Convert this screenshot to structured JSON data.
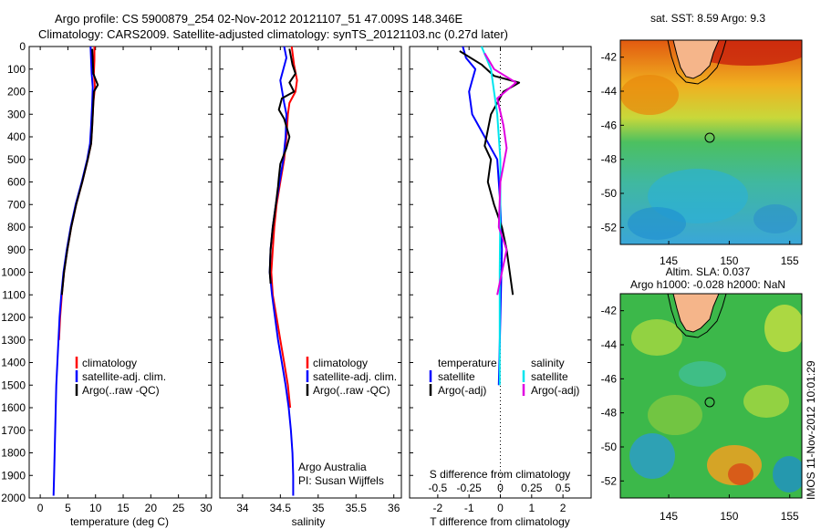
{
  "title_line1": "Argo profile: CS 5900879_254 02-Nov-2012 20121107_51 47.009S 148.346E",
  "title_line2": "Climatology: CARS2009. Satellite-adjusted climatology: synTS_20121103.nc (0.27d later)",
  "credit_line1": "Argo Australia",
  "credit_line2": "PI: Susan Wijffels",
  "timestamp": "IMOS 11-Nov-2012 10:01:29",
  "colors": {
    "climatology": "#ff0000",
    "satellite": "#0000ff",
    "argo": "#000000",
    "sat_salinity": "#00e5ee",
    "argo_salinity": "#e000e0",
    "land": "#f5b58a"
  },
  "chart_data": [
    {
      "type": "line",
      "xlabel": "temperature (deg C)",
      "ylim": [
        0,
        2000
      ],
      "xlim": [
        -2,
        31
      ],
      "y_reversed": true,
      "x_ticks": [
        0,
        5,
        10,
        15,
        20,
        25,
        30
      ],
      "y_ticks": [
        0,
        100,
        200,
        300,
        400,
        500,
        600,
        700,
        800,
        900,
        1000,
        1100,
        1200,
        1300,
        1400,
        1500,
        1600,
        1700,
        1800,
        1900,
        2000
      ],
      "legend": [
        "climatology",
        "satellite-adj. clim.",
        "Argo(..raw -QC)"
      ],
      "series": [
        {
          "name": "climatology",
          "color": "#ff0000",
          "points": [
            [
              9.8,
              0
            ],
            [
              9.8,
              60
            ],
            [
              9.7,
              120
            ],
            [
              9.9,
              180
            ],
            [
              9.6,
              250
            ],
            [
              9.4,
              350
            ],
            [
              9.2,
              430
            ],
            [
              8.6,
              500
            ],
            [
              7.6,
              600
            ],
            [
              6.5,
              700
            ],
            [
              5.6,
              800
            ],
            [
              4.9,
              900
            ],
            [
              4.3,
              1000
            ],
            [
              3.9,
              1100
            ],
            [
              3.6,
              1200
            ],
            [
              3.4,
              1300
            ]
          ]
        },
        {
          "name": "satellite-adj. clim.",
          "color": "#0000ff",
          "points": [
            [
              9.1,
              0
            ],
            [
              9.2,
              60
            ],
            [
              9.3,
              120
            ],
            [
              9.5,
              180
            ],
            [
              9.4,
              250
            ],
            [
              9.2,
              350
            ],
            [
              9.0,
              430
            ],
            [
              8.5,
              500
            ],
            [
              7.5,
              600
            ],
            [
              6.4,
              700
            ],
            [
              5.5,
              800
            ],
            [
              4.8,
              900
            ],
            [
              4.2,
              1000
            ],
            [
              3.8,
              1100
            ],
            [
              3.5,
              1200
            ],
            [
              3.3,
              1300
            ],
            [
              3.1,
              1400
            ],
            [
              2.9,
              1500
            ],
            [
              2.8,
              1600
            ],
            [
              2.7,
              1700
            ],
            [
              2.6,
              1800
            ],
            [
              2.5,
              1900
            ],
            [
              2.4,
              1990
            ]
          ]
        },
        {
          "name": "Argo(..raw -QC)",
          "color": "#000000",
          "points": [
            [
              9.4,
              10
            ],
            [
              9.5,
              60
            ],
            [
              9.6,
              120
            ],
            [
              10.4,
              170
            ],
            [
              9.7,
              200
            ],
            [
              9.6,
              250
            ],
            [
              9.5,
              300
            ],
            [
              9.4,
              350
            ],
            [
              9.2,
              430
            ],
            [
              8.6,
              500
            ],
            [
              7.6,
              600
            ],
            [
              6.5,
              700
            ],
            [
              5.6,
              800
            ],
            [
              4.9,
              900
            ],
            [
              4.3,
              1000
            ],
            [
              3.9,
              1100
            ]
          ]
        }
      ]
    },
    {
      "type": "line",
      "xlabel": "salinity",
      "ylim": [
        0,
        2000
      ],
      "xlim": [
        33.7,
        36.1
      ],
      "y_reversed": true,
      "x_ticks": [
        34,
        34.5,
        35,
        35.5,
        36
      ],
      "legend": [
        "climatology",
        "satellite-adj. clim.",
        "Argo(..raw -QC)"
      ],
      "series": [
        {
          "name": "climatology",
          "color": "#ff0000",
          "points": [
            [
              34.65,
              0
            ],
            [
              34.68,
              80
            ],
            [
              34.72,
              150
            ],
            [
              34.7,
              200
            ],
            [
              34.62,
              250
            ],
            [
              34.6,
              300
            ],
            [
              34.58,
              400
            ],
            [
              34.55,
              500
            ],
            [
              34.5,
              600
            ],
            [
              34.45,
              700
            ],
            [
              34.42,
              800
            ],
            [
              34.4,
              900
            ],
            [
              34.38,
              1000
            ],
            [
              34.4,
              1100
            ],
            [
              34.45,
              1200
            ],
            [
              34.5,
              1300
            ],
            [
              34.55,
              1400
            ],
            [
              34.6,
              1500
            ],
            [
              34.63,
              1600
            ]
          ]
        },
        {
          "name": "satellite-adj. clim.",
          "color": "#0000ff",
          "points": [
            [
              34.55,
              0
            ],
            [
              34.58,
              50
            ],
            [
              34.5,
              150
            ],
            [
              34.55,
              250
            ],
            [
              34.58,
              300
            ],
            [
              34.57,
              400
            ],
            [
              34.54,
              500
            ],
            [
              34.49,
              600
            ],
            [
              34.44,
              700
            ],
            [
              34.4,
              800
            ],
            [
              34.37,
              900
            ],
            [
              34.36,
              1000
            ],
            [
              34.39,
              1100
            ],
            [
              34.43,
              1200
            ],
            [
              34.47,
              1300
            ],
            [
              34.52,
              1400
            ],
            [
              34.57,
              1500
            ],
            [
              34.61,
              1600
            ],
            [
              34.64,
              1700
            ],
            [
              34.66,
              1800
            ],
            [
              34.67,
              1900
            ],
            [
              34.67,
              1990
            ]
          ]
        },
        {
          "name": "Argo(..raw -QC)",
          "color": "#000000",
          "points": [
            [
              34.62,
              10
            ],
            [
              34.66,
              80
            ],
            [
              34.7,
              120
            ],
            [
              34.62,
              160
            ],
            [
              34.68,
              200
            ],
            [
              34.52,
              230
            ],
            [
              34.48,
              280
            ],
            [
              34.55,
              320
            ],
            [
              34.62,
              400
            ],
            [
              34.58,
              450
            ],
            [
              34.5,
              520
            ],
            [
              34.48,
              580
            ],
            [
              34.47,
              620
            ],
            [
              34.44,
              700
            ],
            [
              34.4,
              800
            ],
            [
              34.37,
              900
            ],
            [
              34.36,
              1000
            ],
            [
              34.37,
              1050
            ]
          ]
        }
      ]
    },
    {
      "type": "line",
      "xlabel": "T difference from climatology",
      "top_label": "S difference from climatology",
      "ylim": [
        0,
        2000
      ],
      "xlim": [
        -2.9,
        2.9
      ],
      "y_reversed": true,
      "x_ticks": [
        -2,
        -1,
        0,
        1,
        2
      ],
      "top_ticks": [
        "-0.5",
        "-0.25",
        "0",
        "0.25",
        "0.5"
      ],
      "legend_temperature": {
        "heading": "temperature",
        "items": [
          "satellite",
          "Argo(-adj)"
        ]
      },
      "legend_salinity": {
        "heading": "salinity",
        "items": [
          "satellite",
          "Argo(-adj)"
        ]
      },
      "series": [
        {
          "name": "temperature satellite",
          "color": "#0000ff",
          "points": [
            [
              -1.2,
              0
            ],
            [
              -1.1,
              50
            ],
            [
              -0.8,
              100
            ],
            [
              -0.9,
              150
            ],
            [
              -1.0,
              200
            ],
            [
              -0.9,
              300
            ],
            [
              -0.5,
              400
            ],
            [
              -0.1,
              500
            ],
            [
              0.0,
              700
            ],
            [
              0.05,
              900
            ],
            [
              0.0,
              1200
            ],
            [
              -0.05,
              1500
            ]
          ]
        },
        {
          "name": "temperature Argo(-adj)",
          "color": "#000000",
          "points": [
            [
              -1.3,
              20
            ],
            [
              -0.6,
              80
            ],
            [
              -0.2,
              130
            ],
            [
              0.6,
              160
            ],
            [
              0.1,
              200
            ],
            [
              -0.3,
              300
            ],
            [
              -0.5,
              440
            ],
            [
              -0.3,
              500
            ],
            [
              -0.4,
              600
            ],
            [
              -0.2,
              700
            ],
            [
              0.05,
              800
            ],
            [
              0.2,
              900
            ],
            [
              0.3,
              1000
            ],
            [
              0.4,
              1100
            ]
          ]
        },
        {
          "name": "salinity satellite",
          "color": "#00e5ee",
          "points": [
            [
              -0.6,
              0
            ],
            [
              -0.3,
              100
            ],
            [
              -0.2,
              200
            ],
            [
              -0.1,
              300
            ],
            [
              0.0,
              500
            ],
            [
              0.0,
              700
            ],
            [
              -0.02,
              1000
            ],
            [
              -0.02,
              1500
            ]
          ]
        },
        {
          "name": "salinity Argo(-adj)",
          "color": "#e000e0",
          "points": [
            [
              -0.5,
              30
            ],
            [
              -0.2,
              100
            ],
            [
              0.5,
              160
            ],
            [
              -0.1,
              230
            ],
            [
              0.1,
              350
            ],
            [
              0.2,
              450
            ],
            [
              0.0,
              600
            ],
            [
              -0.05,
              800
            ],
            [
              0.2,
              900
            ],
            [
              0.05,
              1000
            ],
            [
              -0.1,
              1100
            ]
          ]
        }
      ]
    },
    {
      "type": "heatmap",
      "title": "sat. SST: 8.59 Argo: 9.3",
      "xlim": [
        141,
        156
      ],
      "ylim": [
        -53,
        -41
      ],
      "x_ticks": [
        145,
        150,
        155
      ],
      "y_ticks": [
        -42,
        -44,
        -46,
        -48,
        -50,
        -52
      ],
      "marker": [
        148.346,
        -47.009
      ]
    },
    {
      "type": "heatmap",
      "title_line1": "Altim. SLA: 0.037",
      "title_line2": "Argo h1000: -0.028 h2000: NaN",
      "xlim": [
        141,
        156
      ],
      "ylim": [
        -53,
        -41
      ],
      "x_ticks": [
        145,
        150,
        155
      ],
      "y_ticks": [
        -42,
        -44,
        -46,
        -48,
        -50,
        -52
      ],
      "marker": [
        148.346,
        -47.009
      ]
    }
  ]
}
